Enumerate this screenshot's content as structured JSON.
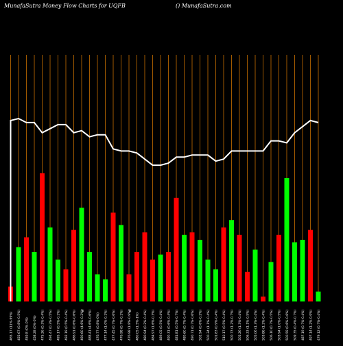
{
  "header": {
    "left_title": "MunafaSutra  Money Flow  Charts for UQFB",
    "right_title": "() MunafaSutra.com"
  },
  "colors": {
    "background": "#000000",
    "positive": "#00ff00",
    "negative": "#ff0000",
    "grid": "#c87000",
    "line": "#ffffff"
  },
  "chart_data": {
    "type": "bar",
    "title": "",
    "xlabel": "",
    "ylabel": "",
    "grid": true,
    "ylim": [
      0,
      100
    ],
    "categories": [
      "465.17 (11%-99%)",
      "455.67 (0.8%-0.5%)",
      "459.8 (0%-0%)",
      "458.28 (0%-0%)",
      "475.26 (0.3%-0.4%)",
      "494.47 (0.3%-0.5%)",
      "495.17 (0.5%-0.1%)",
      "492.19 (0.5%-0.4%)",
      "486.91 (0.6%-0.6%)",
      "490.60 (4.6%-0.2%)",
      "488.41 (4.6%-0.6%)",
      "476.77 (0.8%-0%)",
      "477.14 (1.0%-0.1%)",
      "477.45 (0.7%-0.6%)",
      "476.98 (0.7%-0.1%)",
      "476.98 (1.8%-0.9%)",
      "480.05 (1.5%-1%)",
      "480.94 (0.2%-0.4%)",
      "484.97 (1.6%-0.3%)",
      "489.05 (0.5%-0.4%)",
      "490.31 (0.6%-0.4%)",
      "481.81 (0.5%-0.7%)",
      "480.60 (0.7%-0.4%)",
      "490.71 (0.7%-0.6%)",
      "502.94 (0.6%-0.2%)",
      "500.34 (1.1%-0.4%)",
      "501.83 (0.9%-0.4%)",
      "510.17 (0.5%-0.4%)",
      "500.73 (1.2%-0.7%)",
      "505.26 (1.3%-0.4%)",
      "506.33 (1.1%-0.5%)",
      "505.06 (1.3%-0.4%)",
      "503.86 (1.2%-0.4%)",
      "506.10 (0.7%-0.5%)",
      "503.94 (1.0%-0.5%)",
      "500.59 (0.6%-0.6%)",
      "509.35 (0.4%-0.7%)",
      "487.19 (0.7%-0.4%)",
      "497.14 (1.2%-0.9%)",
      "479.12 (0.7%-0.4%)",
      "482.73 (0.5%-0.1%)",
      "499.73 (0.7%-0.9%)",
      "483.51 (1.2%-0.4%)",
      "497.76 (0.5%-0.4%)",
      "473.57 (0.6%-0.5%)",
      "438.50 (0.8%-0.4%)"
    ],
    "values": [
      6,
      22,
      26,
      20,
      52,
      30,
      17,
      13,
      29,
      38,
      20,
      11,
      9,
      36,
      31,
      11,
      20,
      28,
      17,
      19,
      20,
      42,
      27,
      28,
      25,
      17,
      13,
      30,
      33,
      27,
      12,
      21,
      2,
      16,
      27,
      50,
      24,
      25,
      29,
      4,
      0,
      0,
      0,
      0,
      0,
      0
    ],
    "directions": [
      "neg",
      "pos",
      "neg",
      "pos",
      "neg",
      "pos",
      "pos",
      "neg",
      "neg",
      "pos",
      "pos",
      "pos",
      "pos",
      "neg",
      "pos",
      "neg",
      "neg",
      "neg",
      "neg",
      "pos",
      "neg",
      "neg",
      "pos",
      "neg",
      "pos",
      "pos",
      "pos",
      "neg",
      "pos",
      "neg",
      "neg",
      "pos",
      "neg",
      "pos",
      "neg",
      "pos",
      "pos",
      "pos",
      "neg",
      "pos",
      "pos",
      "pos",
      "pos",
      "pos",
      "pos",
      "pos"
    ],
    "line": [
      90,
      91,
      89,
      89,
      84,
      86,
      88,
      88,
      84,
      85,
      82,
      83,
      83,
      76,
      75,
      75,
      74,
      71,
      68,
      68,
      69,
      72,
      72,
      73,
      73,
      73,
      70,
      71,
      75,
      75,
      75,
      75,
      75,
      80,
      80,
      79,
      84,
      87,
      90,
      89,
      91,
      91,
      91,
      91,
      91,
      91
    ],
    "markers": [
      "%",
      "%",
      "",
      ""
    ]
  }
}
